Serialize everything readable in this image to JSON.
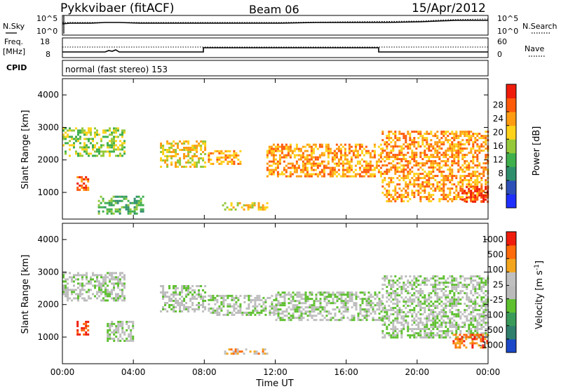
{
  "header": {
    "station": "Pykkvibaer (fitACF)",
    "beam": "Beam 06",
    "date": "15/Apr/2012"
  },
  "strip_panels": {
    "noise": {
      "left_label": "N.Sky",
      "right_label": "N.Search",
      "left_ticks": [
        "10^5",
        "10^0"
      ],
      "right_ticks": [
        "10^5",
        "10^0"
      ]
    },
    "freq": {
      "left_label_top": "Freq.",
      "left_label_units": "[MHz]",
      "right_label": "Nave",
      "left_ticks": [
        "18",
        "8"
      ],
      "right_ticks": [
        "60",
        "0"
      ]
    },
    "cpid": {
      "label": "CPID",
      "value_text": "normal (fast stereo) 153"
    }
  },
  "chart_data": [
    {
      "type": "heatmap",
      "title": "",
      "xlabel": "",
      "ylabel": "Slant Range [km]",
      "x_ticks": [
        "00:00",
        "04:00",
        "08:00",
        "12:00",
        "16:00",
        "20:00",
        "00:00"
      ],
      "y_ticks": [
        1000,
        2000,
        3000,
        4000
      ],
      "xlim_hours": [
        0,
        24
      ],
      "ylim_km": [
        180,
        4500
      ],
      "colorbar": {
        "label": "Power [dB]",
        "ticks": [
          "4",
          "8",
          "12",
          "16",
          "20",
          "24",
          "28"
        ],
        "colors": [
          "#1e2fff",
          "#2c4fb8",
          "#2f8f6c",
          "#3fb04c",
          "#95c93a",
          "#ffd21a",
          "#ff9c12",
          "#ff5a0a",
          "#ef1c0b"
        ]
      },
      "regions": [
        {
          "t0": 0.0,
          "t1": 3.5,
          "r0": 2100,
          "r1": 3000,
          "level": 4
        },
        {
          "t0": 0.8,
          "t1": 1.5,
          "r0": 1100,
          "r1": 1500,
          "level": 7
        },
        {
          "t0": 2.0,
          "t1": 4.5,
          "r0": 350,
          "r1": 900,
          "level": 3
        },
        {
          "t0": 5.5,
          "t1": 8.0,
          "r0": 1800,
          "r1": 2600,
          "level": 5
        },
        {
          "t0": 8.2,
          "t1": 10.0,
          "r0": 1900,
          "r1": 2300,
          "level": 6
        },
        {
          "t0": 9.0,
          "t1": 11.5,
          "r0": 500,
          "r1": 700,
          "level": 5
        },
        {
          "t0": 11.5,
          "t1": 18.0,
          "r0": 1500,
          "r1": 2500,
          "level": 6
        },
        {
          "t0": 18.0,
          "t1": 24.0,
          "r0": 700,
          "r1": 2900,
          "level": 6
        },
        {
          "t0": 22.5,
          "t1": 24.0,
          "r0": 700,
          "r1": 1200,
          "level": 8
        }
      ]
    },
    {
      "type": "heatmap",
      "title": "",
      "xlabel": "Time UT",
      "ylabel": "Slant Range [km]",
      "x_ticks": [
        "00:00",
        "04:00",
        "08:00",
        "12:00",
        "16:00",
        "20:00",
        "00:00"
      ],
      "y_ticks": [
        1000,
        2000,
        3000,
        4000
      ],
      "xlim_hours": [
        0,
        24
      ],
      "ylim_km": [
        180,
        4500
      ],
      "colorbar": {
        "label": "Velocity [m s^-1]",
        "ticks": [
          "1000",
          "500",
          "100",
          "25",
          "-25",
          "-100",
          "-500",
          "-1000"
        ],
        "colors": [
          "#1a48c8",
          "#2f7f6c",
          "#3a9a5a",
          "#5ec02f",
          "#bbbbbb",
          "#c0c0c0",
          "#f3a51e",
          "#ff6a0a",
          "#ef1c0b"
        ]
      },
      "regions": [
        {
          "t0": 0.0,
          "t1": 3.5,
          "r0": 2100,
          "r1": 3000,
          "level": 4
        },
        {
          "t0": 0.8,
          "t1": 1.5,
          "r0": 1100,
          "r1": 1500,
          "level": 8
        },
        {
          "t0": 2.5,
          "t1": 4.0,
          "r0": 900,
          "r1": 1500,
          "level": 4
        },
        {
          "t0": 5.5,
          "t1": 8.0,
          "r0": 1800,
          "r1": 2600,
          "level": 4
        },
        {
          "t0": 8.2,
          "t1": 12.0,
          "r0": 1700,
          "r1": 2300,
          "level": 4
        },
        {
          "t0": 9.0,
          "t1": 11.5,
          "r0": 500,
          "r1": 650,
          "level": 6
        },
        {
          "t0": 12.0,
          "t1": 18.0,
          "r0": 1500,
          "r1": 2400,
          "level": 4
        },
        {
          "t0": 18.0,
          "t1": 24.0,
          "r0": 1000,
          "r1": 2900,
          "level": 4
        },
        {
          "t0": 22.0,
          "t1": 24.0,
          "r0": 700,
          "r1": 1100,
          "level": 7
        }
      ]
    }
  ]
}
